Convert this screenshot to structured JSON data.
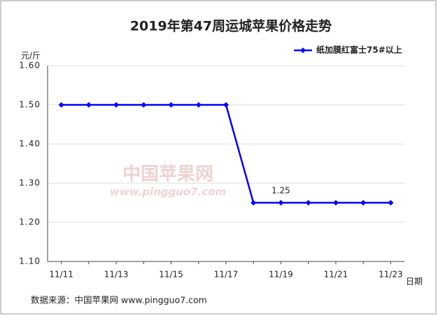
{
  "chart_data": {
    "type": "line",
    "title": "2019年第47周运城苹果价格走势",
    "y_label": "元/斤",
    "x_label": "日期",
    "source": "数据来源：中国苹果网 www.pingguo7.com",
    "watermark": [
      "中国苹果网",
      "www.pingguo7.com"
    ],
    "categories": [
      "11/11",
      null,
      "11/13",
      null,
      "11/15",
      null,
      "11/17",
      null,
      "11/19",
      null,
      "11/21",
      null,
      "11/23"
    ],
    "series": [
      {
        "name": "纸加膜红富士75#以上",
        "color": "#0000ff",
        "values": [
          1.5,
          1.5,
          1.5,
          1.5,
          1.5,
          1.5,
          1.5,
          1.25,
          1.25,
          1.25,
          1.25,
          1.25,
          1.25
        ],
        "value_labels": [
          null,
          null,
          null,
          null,
          null,
          null,
          null,
          null,
          "1.25",
          null,
          null,
          null,
          null
        ]
      }
    ],
    "ylim": [
      1.1,
      1.6
    ],
    "yticks": [
      {
        "value": 1.1,
        "label": "1.10"
      },
      {
        "value": 1.2,
        "label": "1.20"
      },
      {
        "value": 1.3,
        "label": "1.30"
      },
      {
        "value": 1.4,
        "label": "1.40"
      },
      {
        "value": 1.5,
        "label": "1.50"
      },
      {
        "value": 1.6,
        "label": "1.60"
      }
    ],
    "grid": true,
    "legend": "top-right"
  }
}
